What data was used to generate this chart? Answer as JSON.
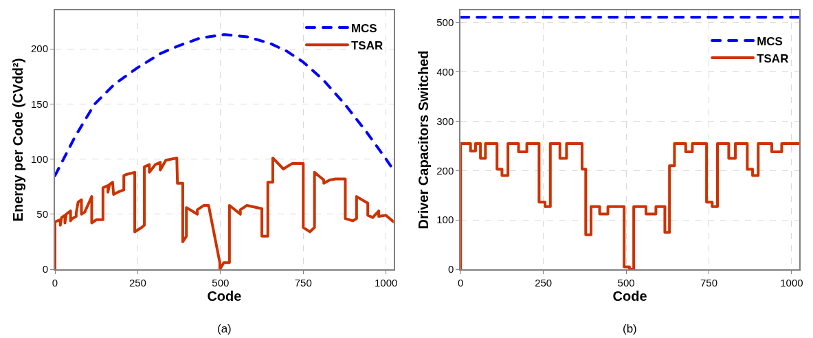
{
  "chart_data": [
    {
      "type": "line",
      "xlabel": "Code",
      "ylabel": "Energy per Code (CVdd²)",
      "xlim": [
        0,
        1023
      ],
      "ylim": [
        0,
        235
      ],
      "xticks": [
        0,
        250,
        500,
        750,
        1000
      ],
      "yticks": [
        0,
        50,
        100,
        150,
        200
      ],
      "grid": true,
      "legend": "top right",
      "annotations": [
        "(a)"
      ],
      "series": [
        {
          "name": "MCS",
          "color": "#0000ff",
          "line_style": "dashed",
          "x": [
            0,
            60,
            120,
            180,
            250,
            320,
            375,
            440,
            512,
            580,
            650,
            700,
            750,
            810,
            875,
            940,
            1000,
            1023
          ],
          "values": [
            85,
            120,
            150,
            168,
            183,
            196,
            203,
            210,
            213,
            211,
            205,
            198,
            188,
            172,
            150,
            125,
            100,
            90
          ]
        },
        {
          "name": "TSAR",
          "color": "#cc3300",
          "line_style": "solid",
          "x": [
            0,
            0,
            16,
            16,
            20,
            30,
            30,
            34,
            47,
            47,
            52,
            64,
            64,
            70,
            80,
            80,
            90,
            111,
            111,
            125,
            145,
            145,
            160,
            160,
            165,
            174,
            177,
            190,
            208,
            208,
            215,
            241,
            241,
            262,
            270,
            270,
            285,
            285,
            303,
            318,
            318,
            335,
            368,
            370,
            386,
            386,
            397,
            397,
            430,
            430,
            450,
            464,
            498,
            498,
            510,
            512,
            527,
            527,
            560,
            560,
            580,
            594,
            625,
            625,
            643,
            643,
            658,
            658,
            690,
            700,
            717,
            750,
            750,
            770,
            784,
            784,
            812,
            812,
            830,
            848,
            877,
            877,
            900,
            911,
            911,
            945,
            945,
            960,
            978,
            978,
            1000,
            1023
          ],
          "values": [
            0,
            43,
            45,
            40,
            47,
            49,
            42,
            50,
            53,
            44,
            46,
            48,
            51,
            61,
            63,
            50,
            52,
            66,
            42,
            45,
            45,
            74,
            76,
            70,
            77,
            79,
            68,
            70,
            72,
            85,
            86,
            88,
            34,
            38,
            40,
            93,
            95,
            88,
            95,
            97,
            90,
            99,
            101,
            78,
            78,
            25,
            30,
            56,
            50,
            54,
            58,
            58,
            6,
            0,
            6,
            6,
            6,
            58,
            50,
            54,
            58,
            57,
            55,
            30,
            30,
            79,
            79,
            101,
            91,
            93,
            96,
            96,
            38,
            34,
            38,
            88,
            81,
            78,
            81,
            82,
            82,
            46,
            44,
            46,
            66,
            60,
            49,
            47,
            53,
            48,
            49,
            43
          ]
        }
      ]
    },
    {
      "type": "line",
      "xlabel": "Code",
      "ylabel": "Driver Capacitors Switched",
      "xlim": [
        0,
        1023
      ],
      "ylim": [
        0,
        525
      ],
      "xticks": [
        0,
        250,
        500,
        750,
        1000
      ],
      "yticks": [
        0,
        100,
        200,
        300,
        400,
        500
      ],
      "grid": true,
      "legend": "top right",
      "annotations": [
        "(b)"
      ],
      "series": [
        {
          "name": "MCS",
          "color": "#0000ff",
          "line_style": "dashed",
          "x": [
            0,
            1023
          ],
          "values": [
            511,
            511
          ]
        },
        {
          "name": "TSAR",
          "color": "#cc3300",
          "line_style": "solid",
          "x": [
            0,
            0,
            30,
            30,
            45,
            45,
            60,
            60,
            75,
            75,
            110,
            110,
            125,
            125,
            143,
            143,
            175,
            175,
            200,
            200,
            237,
            237,
            255,
            255,
            271,
            271,
            300,
            300,
            320,
            320,
            367,
            367,
            378,
            378,
            394,
            394,
            420,
            420,
            445,
            445,
            494,
            494,
            510,
            510,
            523,
            523,
            560,
            560,
            590,
            590,
            617,
            617,
            631,
            631,
            646,
            646,
            680,
            680,
            700,
            700,
            743,
            743,
            760,
            760,
            776,
            776,
            810,
            810,
            830,
            830,
            866,
            866,
            882,
            882,
            899,
            899,
            940,
            940,
            970,
            970,
            1023
          ],
          "values": [
            0,
            255,
            255,
            240,
            240,
            255,
            255,
            225,
            225,
            255,
            255,
            203,
            203,
            190,
            190,
            255,
            255,
            238,
            238,
            255,
            255,
            136,
            136,
            127,
            127,
            255,
            255,
            225,
            225,
            255,
            255,
            203,
            203,
            70,
            70,
            127,
            127,
            112,
            112,
            127,
            127,
            5,
            5,
            0,
            0,
            127,
            127,
            112,
            112,
            127,
            127,
            75,
            75,
            210,
            210,
            255,
            255,
            238,
            238,
            255,
            255,
            136,
            136,
            127,
            127,
            255,
            255,
            225,
            225,
            255,
            255,
            203,
            203,
            190,
            190,
            255,
            255,
            238,
            238,
            255,
            255
          ]
        }
      ]
    }
  ]
}
